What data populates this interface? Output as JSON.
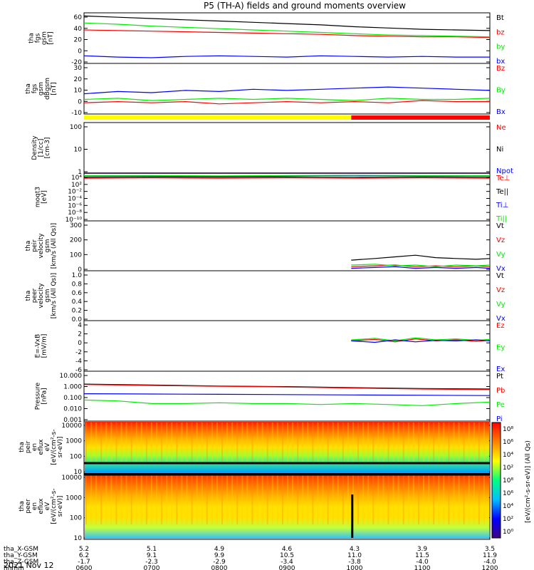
{
  "title": "P5 (TH-A) fields and ground moments overview",
  "date_label": "2021 Nov 12",
  "colors": {
    "black": "#000000",
    "red": "#ff0000",
    "green": "#00ee00",
    "blue": "#0000ff",
    "yellow": "#ffff00"
  },
  "chart_data": [
    {
      "id": "p1",
      "type": "line",
      "ylabel": [
        "tha",
        "fgs",
        "gsm",
        "[nT]"
      ],
      "ylim": [
        -20,
        60
      ],
      "ticks": [
        60,
        40,
        20,
        0,
        -20
      ],
      "legend": [
        {
          "name": "Bt",
          "color": "black"
        },
        {
          "name": "bz",
          "color": "red"
        },
        {
          "name": "by",
          "color": "green"
        },
        {
          "name": "bx",
          "color": "blue"
        }
      ],
      "series": [
        {
          "name": "Bt",
          "color": "black",
          "x": [
            0,
            0.5,
            1,
            1.5,
            2,
            2.5,
            3,
            3.5,
            4,
            4.5,
            5,
            5.5,
            6
          ],
          "y": [
            55,
            53,
            51,
            49,
            47,
            45,
            43,
            41,
            38,
            36,
            34,
            33,
            32
          ]
        },
        {
          "name": "bz",
          "color": "red",
          "x": [
            0,
            0.5,
            1,
            1.5,
            2,
            2.5,
            3,
            3.5,
            4,
            4.5,
            5,
            5.5,
            6
          ],
          "y": [
            33,
            32,
            31,
            30,
            29,
            28,
            27,
            26,
            24,
            23,
            22,
            22,
            21
          ]
        },
        {
          "name": "by",
          "color": "green",
          "x": [
            0,
            0.5,
            1,
            1.5,
            2,
            2.5,
            3,
            3.5,
            4,
            4.5,
            5,
            5.5,
            6
          ],
          "y": [
            44,
            42,
            39,
            37,
            35,
            33,
            31,
            29,
            27,
            25,
            24,
            23,
            22
          ]
        },
        {
          "name": "bx",
          "color": "blue",
          "x": [
            0,
            0.5,
            1,
            1.5,
            2,
            2.5,
            3,
            3.5,
            4,
            4.5,
            5,
            5.5,
            6
          ],
          "y": [
            -8,
            -10,
            -11,
            -9,
            -8,
            -9,
            -10,
            -8,
            -9,
            -10,
            -9,
            -10,
            -10
          ]
        }
      ]
    },
    {
      "id": "p2",
      "type": "line",
      "ylabel": [
        "tha",
        "fgs",
        "gsm",
        "dBgsm",
        "[nT]"
      ],
      "ylim": [
        -15,
        30
      ],
      "ticks": [
        30,
        20,
        10,
        0,
        -10
      ],
      "legend": [
        {
          "name": "Bz",
          "color": "red"
        },
        {
          "name": "By",
          "color": "green"
        },
        {
          "name": "Bx",
          "color": "blue"
        }
      ],
      "series": [
        {
          "name": "Bz",
          "color": "red",
          "x": [
            0,
            0.5,
            1,
            1.5,
            2,
            2.5,
            3,
            3.5,
            4,
            4.5,
            5,
            5.5,
            6
          ],
          "y": [
            -5,
            -4,
            -5,
            -4,
            -6,
            -5,
            -4,
            -5,
            -4,
            -5,
            -3,
            -4,
            -4
          ]
        },
        {
          "name": "By",
          "color": "green",
          "x": [
            0,
            0.5,
            1,
            1.5,
            2,
            2.5,
            3,
            3.5,
            4,
            4.5,
            5,
            5.5,
            6
          ],
          "y": [
            -2,
            -1,
            -3,
            -2,
            -1,
            -2,
            -1,
            -2,
            -3,
            -1,
            -2,
            -2,
            -1
          ]
        },
        {
          "name": "Bx",
          "color": "blue",
          "x": [
            0,
            0.5,
            1,
            1.5,
            2,
            2.5,
            3,
            3.5,
            4,
            4.5,
            5,
            5.5,
            6
          ],
          "y": [
            3,
            5,
            4,
            6,
            5,
            7,
            6,
            7,
            8,
            9,
            8,
            7,
            6
          ]
        }
      ]
    },
    {
      "id": "p3",
      "type": "line",
      "scale": "log",
      "ylabel": [
        "Density",
        "[1/cc]",
        "[cm-3]"
      ],
      "ylim": [
        1,
        200
      ],
      "ticks": [
        "100",
        "10",
        "1"
      ],
      "legend": [
        {
          "name": "Ne",
          "color": "red"
        },
        {
          "name": "Ni",
          "color": "black"
        },
        {
          "name": "Npot",
          "color": "blue"
        }
      ],
      "series": [
        {
          "name": "Ne",
          "color": "red",
          "x": [
            0,
            0.5,
            1,
            1.5,
            2,
            2.5,
            3,
            3.5,
            4,
            4.5,
            5,
            5.5,
            6
          ],
          "y": [
            0.5,
            0.45,
            0.5,
            0.5,
            0.6,
            0.55,
            0.5,
            0.3,
            0.25,
            0.25,
            0.3,
            0.25,
            0.2
          ]
        },
        {
          "name": "Ni",
          "color": "black",
          "x": [
            0,
            0.5,
            1,
            1.5,
            2,
            2.5,
            3,
            3.5,
            4,
            4.5,
            5,
            5.5,
            6
          ],
          "y": [
            0.55,
            0.5,
            0.55,
            0.55,
            0.65,
            0.6,
            0.55,
            0.35,
            0.3,
            0.3,
            0.35,
            0.3,
            0.25
          ]
        },
        {
          "name": "Npot",
          "color": "blue",
          "x": [
            0,
            0.5,
            1,
            1.5,
            2,
            2.5,
            3,
            3.5,
            4,
            4.5,
            5,
            5.5,
            6
          ],
          "y": [
            0.3,
            0.3,
            0.35,
            0.3,
            0.4,
            0.35,
            0.3,
            0.35,
            0.4,
            0.5,
            0.6,
            0.7,
            0.7
          ]
        }
      ]
    },
    {
      "id": "p4",
      "type": "line",
      "scale": "log",
      "ylabel": [
        "moqt3",
        "[eV]"
      ],
      "ylim": [
        -10,
        4
      ],
      "ticks": [
        "10⁴",
        "10²",
        "10⁻²",
        "10⁻⁴",
        "10⁻⁶",
        "10⁻⁸",
        "10⁻¹⁰"
      ],
      "legend": [
        {
          "name": "Te⊥",
          "color": "red"
        },
        {
          "name": "Te||",
          "color": "black"
        },
        {
          "name": "Ti⊥",
          "color": "blue"
        },
        {
          "name": "Ti||",
          "color": "green"
        }
      ],
      "series": [
        {
          "name": "Te⊥",
          "color": "red",
          "x": [
            0,
            1,
            2,
            3,
            4,
            5,
            6
          ],
          "y": [
            2.5,
            2.6,
            2.5,
            2.6,
            2.5,
            2.6,
            2.5
          ]
        },
        {
          "name": "Te||",
          "color": "black",
          "x": [
            0,
            1,
            2,
            3,
            4,
            5,
            6
          ],
          "y": [
            2.8,
            2.9,
            2.8,
            2.9,
            2.8,
            2.9,
            2.8
          ]
        },
        {
          "name": "Ti⊥",
          "color": "blue",
          "x": [
            0,
            1,
            2,
            3,
            4,
            5,
            6
          ],
          "y": [
            3.2,
            3.2,
            3.1,
            3.2,
            3.3,
            3.2,
            3.2
          ]
        },
        {
          "name": "Ti||",
          "color": "green",
          "x": [
            0,
            1,
            2,
            3,
            4,
            5,
            6
          ],
          "y": [
            3.3,
            3.3,
            3.2,
            3.3,
            3.4,
            3.3,
            3.3
          ]
        }
      ]
    },
    {
      "id": "p5",
      "type": "line",
      "ylabel": [
        "tha",
        "peir",
        "velocity",
        "gsm",
        "[km/s (All Qs)]"
      ],
      "ylim": [
        -5,
        300
      ],
      "ticks": [
        300,
        200,
        100,
        0
      ],
      "legend": [
        {
          "name": "Vt",
          "color": "black"
        },
        {
          "name": "Vz",
          "color": "red"
        },
        {
          "name": "Vy",
          "color": "green"
        },
        {
          "name": "Vx",
          "color": "blue"
        }
      ],
      "series": [
        {
          "name": "Vt",
          "color": "black",
          "x": [
            3.95,
            4.3,
            4.6,
            4.9,
            5.2,
            5.5,
            5.8,
            6
          ],
          "y": [
            60,
            70,
            80,
            90,
            75,
            70,
            65,
            70
          ]
        },
        {
          "name": "Vz",
          "color": "red",
          "x": [
            3.95,
            4.3,
            4.6,
            4.9,
            5.2,
            5.5,
            5.8,
            6
          ],
          "y": [
            20,
            25,
            30,
            20,
            25,
            20,
            25,
            20
          ]
        },
        {
          "name": "Vy",
          "color": "green",
          "x": [
            3.95,
            4.3,
            4.6,
            4.9,
            5.2,
            5.5,
            5.8,
            6
          ],
          "y": [
            30,
            35,
            25,
            30,
            20,
            30,
            25,
            30
          ]
        },
        {
          "name": "Vx",
          "color": "blue",
          "x": [
            3.95,
            4.3,
            4.6,
            4.9,
            5.2,
            5.5,
            5.8,
            6
          ],
          "y": [
            10,
            15,
            20,
            10,
            15,
            10,
            15,
            10
          ]
        }
      ]
    },
    {
      "id": "p6",
      "type": "line",
      "ylabel": [
        "tha",
        "peer",
        "velocity",
        "gsm",
        "[km/s (All Qs)]"
      ],
      "ylim": [
        0,
        1
      ],
      "ticks": [
        "1.0",
        "0.8",
        "0.6",
        "0.4",
        "0.2",
        "0.0"
      ],
      "legend": [
        {
          "name": "Vt",
          "color": "black"
        },
        {
          "name": "Vz",
          "color": "red"
        },
        {
          "name": "Vy",
          "color": "green"
        },
        {
          "name": "Vx",
          "color": "blue"
        }
      ],
      "series": []
    },
    {
      "id": "p7",
      "type": "line",
      "ylabel": [
        "E=-VxB",
        "[mV/m]"
      ],
      "ylim": [
        -6,
        4
      ],
      "ticks": [
        4,
        2,
        0,
        -2,
        -4,
        -6
      ],
      "legend": [
        {
          "name": "Ez",
          "color": "red"
        },
        {
          "name": "Ey",
          "color": "green"
        },
        {
          "name": "Ex",
          "color": "blue"
        }
      ],
      "series": [
        {
          "name": "Ez",
          "color": "red",
          "x": [
            3.95,
            4.3,
            4.6,
            4.9,
            5.2,
            5.5,
            5.8,
            6
          ],
          "y": [
            0,
            0.3,
            -0.2,
            0.4,
            0,
            0.2,
            -0.1,
            0.1
          ]
        },
        {
          "name": "Ey",
          "color": "green",
          "x": [
            3.95,
            4.3,
            4.6,
            4.9,
            5.2,
            5.5,
            5.8,
            6
          ],
          "y": [
            0.2,
            0.5,
            0,
            0.6,
            0.2,
            0.4,
            0.1,
            0.3
          ]
        },
        {
          "name": "Ex",
          "color": "blue",
          "x": [
            3.95,
            4.3,
            4.6,
            4.9,
            5.2,
            5.5,
            5.8,
            6
          ],
          "y": [
            0,
            -0.3,
            0.2,
            -0.2,
            0.1,
            0,
            0.2,
            0
          ]
        }
      ]
    },
    {
      "id": "p8",
      "type": "line",
      "scale": "log",
      "ylabel": [
        "Pressure",
        "[nPa]"
      ],
      "ylim": [
        -3,
        1.2
      ],
      "ticks": [
        "10.000",
        "1.000",
        "0.100",
        "0.010",
        "0.001"
      ],
      "legend": [
        {
          "name": "Pt",
          "color": "black"
        },
        {
          "name": "Pb",
          "color": "red"
        },
        {
          "name": "Pe",
          "color": "green"
        },
        {
          "name": "Pi",
          "color": "blue"
        }
      ],
      "series": [
        {
          "name": "Pt",
          "color": "black",
          "x": [
            0,
            1,
            2,
            3,
            4,
            5,
            6
          ],
          "y": [
            1.3,
            1.1,
            0.9,
            0.8,
            0.65,
            0.55,
            0.5
          ]
        },
        {
          "name": "Pb",
          "color": "red",
          "x": [
            0,
            1,
            2,
            3,
            4,
            5,
            6
          ],
          "y": [
            1.2,
            1.0,
            0.85,
            0.75,
            0.6,
            0.5,
            0.45
          ]
        },
        {
          "name": "Pe",
          "color": "green",
          "x": [
            0,
            0.5,
            1,
            1.5,
            2,
            2.5,
            3,
            3.5,
            4,
            4.5,
            5,
            5.5,
            6
          ],
          "y": [
            0.06,
            0.05,
            0.03,
            0.03,
            0.035,
            0.03,
            0.03,
            0.025,
            0.03,
            0.025,
            0.02,
            0.03,
            0.04
          ]
        },
        {
          "name": "Pi",
          "color": "blue",
          "x": [
            0,
            1,
            2,
            3,
            4,
            5,
            6
          ],
          "y": [
            0.2,
            0.19,
            0.18,
            0.17,
            0.16,
            0.15,
            0.14
          ]
        }
      ]
    },
    {
      "id": "p9",
      "type": "heatmap",
      "ylabel": [
        "tha",
        "peir",
        "en",
        "eflux",
        "eV",
        "[eV/(cm²-s-",
        "sr-eV)]"
      ],
      "ticks": [
        "10000",
        "1000",
        "100",
        "10"
      ],
      "color_range": [
        "10⁸",
        "10⁶",
        "10⁴",
        "10²"
      ]
    },
    {
      "id": "p10",
      "type": "heatmap",
      "ylabel": [
        "tha",
        "peer",
        "en",
        "eflux",
        "eV",
        "[eV/(cm²-s-",
        "sr-eV)]"
      ],
      "ticks": [
        "10000",
        "1000",
        "100",
        "10"
      ],
      "color_range": [
        "10⁸",
        "10⁶",
        "10⁴",
        "10²",
        "10⁰"
      ]
    }
  ],
  "colorbar_label": "[eV/(cm²-s-sr-eV)] (All Qs)",
  "axis_rows": [
    {
      "label": "tha_X-GSM",
      "values": [
        "5.2",
        "5.1",
        "4.9",
        "4.6",
        "4.3",
        "3.9",
        "3.5"
      ]
    },
    {
      "label": "tha_Y-GSM",
      "values": [
        "6.2",
        "9.1",
        "9.9",
        "10.5",
        "11.0",
        "11.5",
        "11.9"
      ]
    },
    {
      "label": "tha_Z-GSM",
      "values": [
        "-1.7",
        "-2.3",
        "-2.9",
        "-3.4",
        "-3.8",
        "-4.0",
        "-4.0"
      ]
    },
    {
      "label": "hhmm",
      "values": [
        "0600",
        "0700",
        "0800",
        "0900",
        "1000",
        "1100",
        "1200"
      ]
    }
  ]
}
